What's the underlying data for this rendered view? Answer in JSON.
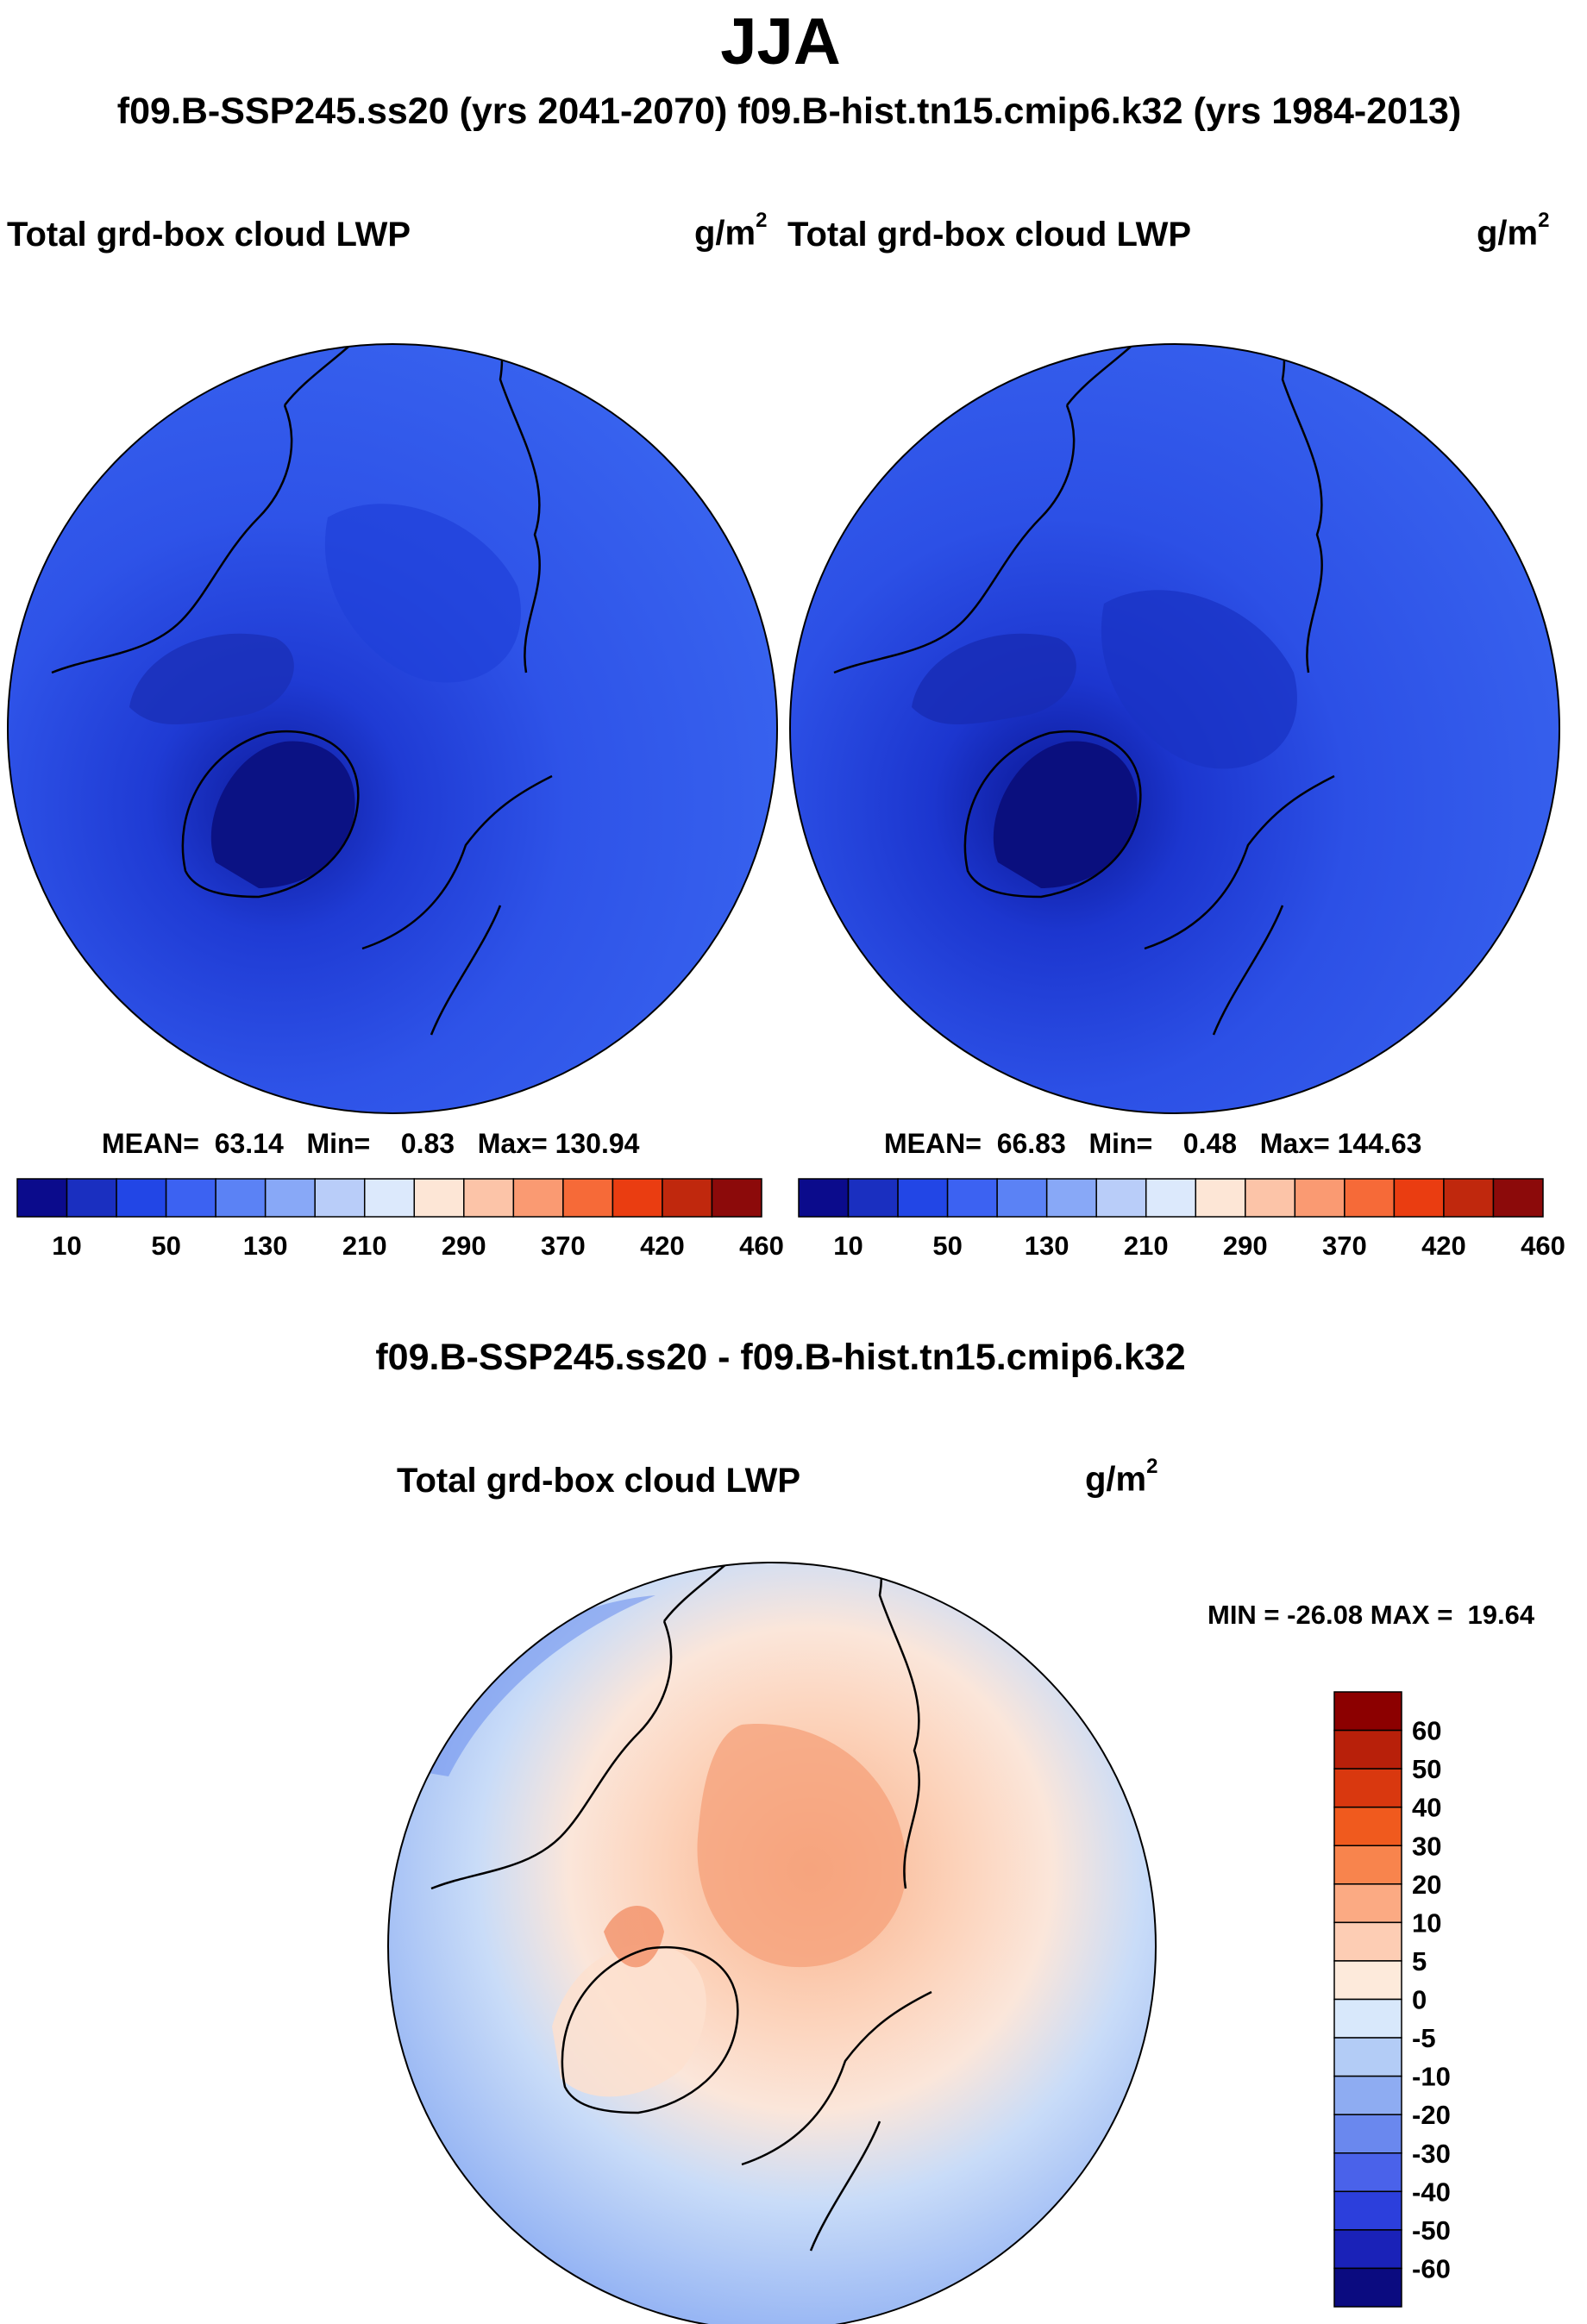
{
  "figure": {
    "main_title": "JJA",
    "subtitle": "f09.B-SSP245.ss20 (yrs 2041-2070)  f09.B-hist.tn15.cmip6.k32 (yrs 1984-2013)"
  },
  "panels": [
    {
      "variable": "Total grd-box cloud LWP",
      "units_base": "g/m",
      "units_exp": "2",
      "stats": {
        "mean_label": "MEAN=",
        "mean": "63.14",
        "min_label": "Min=",
        "min": "0.83",
        "max_label": "Max=",
        "max": "130.94"
      }
    },
    {
      "variable": "Total grd-box cloud LWP",
      "units_base": "g/m",
      "units_exp": "2",
      "stats": {
        "mean_label": "MEAN=",
        "mean": "66.83",
        "min_label": "Min=",
        "min": "0.48",
        "max_label": "Max=",
        "max": "144.63"
      }
    }
  ],
  "difference": {
    "title": "f09.B-SSP245.ss20 - f09.B-hist.tn15.cmip6.k32",
    "variable": "Total grd-box cloud LWP",
    "units_base": "g/m",
    "units_exp": "2",
    "min_label": "MIN =",
    "min": "-26.08",
    "max_label": "MAX =",
    "max": "19.64"
  },
  "chart_data": [
    {
      "type": "heatmap",
      "title": "Total grd-box cloud LWP",
      "projection": "north polar stereographic",
      "units": "g/m^2",
      "mean": 63.14,
      "min": 0.83,
      "max": 130.94,
      "colorbar": {
        "orientation": "horizontal",
        "labels": [
          "10",
          "50",
          "130",
          "210",
          "290",
          "370",
          "420",
          "460"
        ],
        "colors": [
          "#0b0b8c",
          "#1a2fc0",
          "#2246e6",
          "#3c62f2",
          "#5b82f5",
          "#88a8f7",
          "#b9cdf9",
          "#dce9fc",
          "#fde6d6",
          "#fcc4a8",
          "#fa9a72",
          "#f66a38",
          "#ea3d11",
          "#c0280d",
          "#8c0a0a"
        ]
      }
    },
    {
      "type": "heatmap",
      "title": "Total grd-box cloud LWP",
      "projection": "north polar stereographic",
      "units": "g/m^2",
      "mean": 66.83,
      "min": 0.48,
      "max": 144.63,
      "colorbar": {
        "orientation": "horizontal",
        "labels": [
          "10",
          "50",
          "130",
          "210",
          "290",
          "370",
          "420",
          "460"
        ],
        "colors": [
          "#0b0b8c",
          "#1a2fc0",
          "#2246e6",
          "#3c62f2",
          "#5b82f5",
          "#88a8f7",
          "#b9cdf9",
          "#dce9fc",
          "#fde6d6",
          "#fcc4a8",
          "#fa9a72",
          "#f66a38",
          "#ea3d11",
          "#c0280d",
          "#8c0a0a"
        ]
      }
    },
    {
      "type": "heatmap",
      "title": "f09.B-SSP245.ss20 - f09.B-hist.tn15.cmip6.k32",
      "projection": "north polar stereographic",
      "units": "g/m^2",
      "min": -26.08,
      "max": 19.64,
      "colorbar": {
        "orientation": "vertical",
        "labels": [
          "60",
          "50",
          "40",
          "30",
          "20",
          "10",
          "5",
          "0",
          "-5",
          "-10",
          "-20",
          "-30",
          "-40",
          "-50",
          "-60"
        ],
        "colors": [
          "#8c0000",
          "#b8200a",
          "#d9380f",
          "#f05a1e",
          "#f8844d",
          "#fbaa83",
          "#fdcdb4",
          "#fdeadb",
          "#d8e8fb",
          "#b3ccf6",
          "#8eacf2",
          "#6a88ee",
          "#4a62ea",
          "#2c3fdc",
          "#1a22b8",
          "#0b0b80"
        ]
      }
    }
  ]
}
